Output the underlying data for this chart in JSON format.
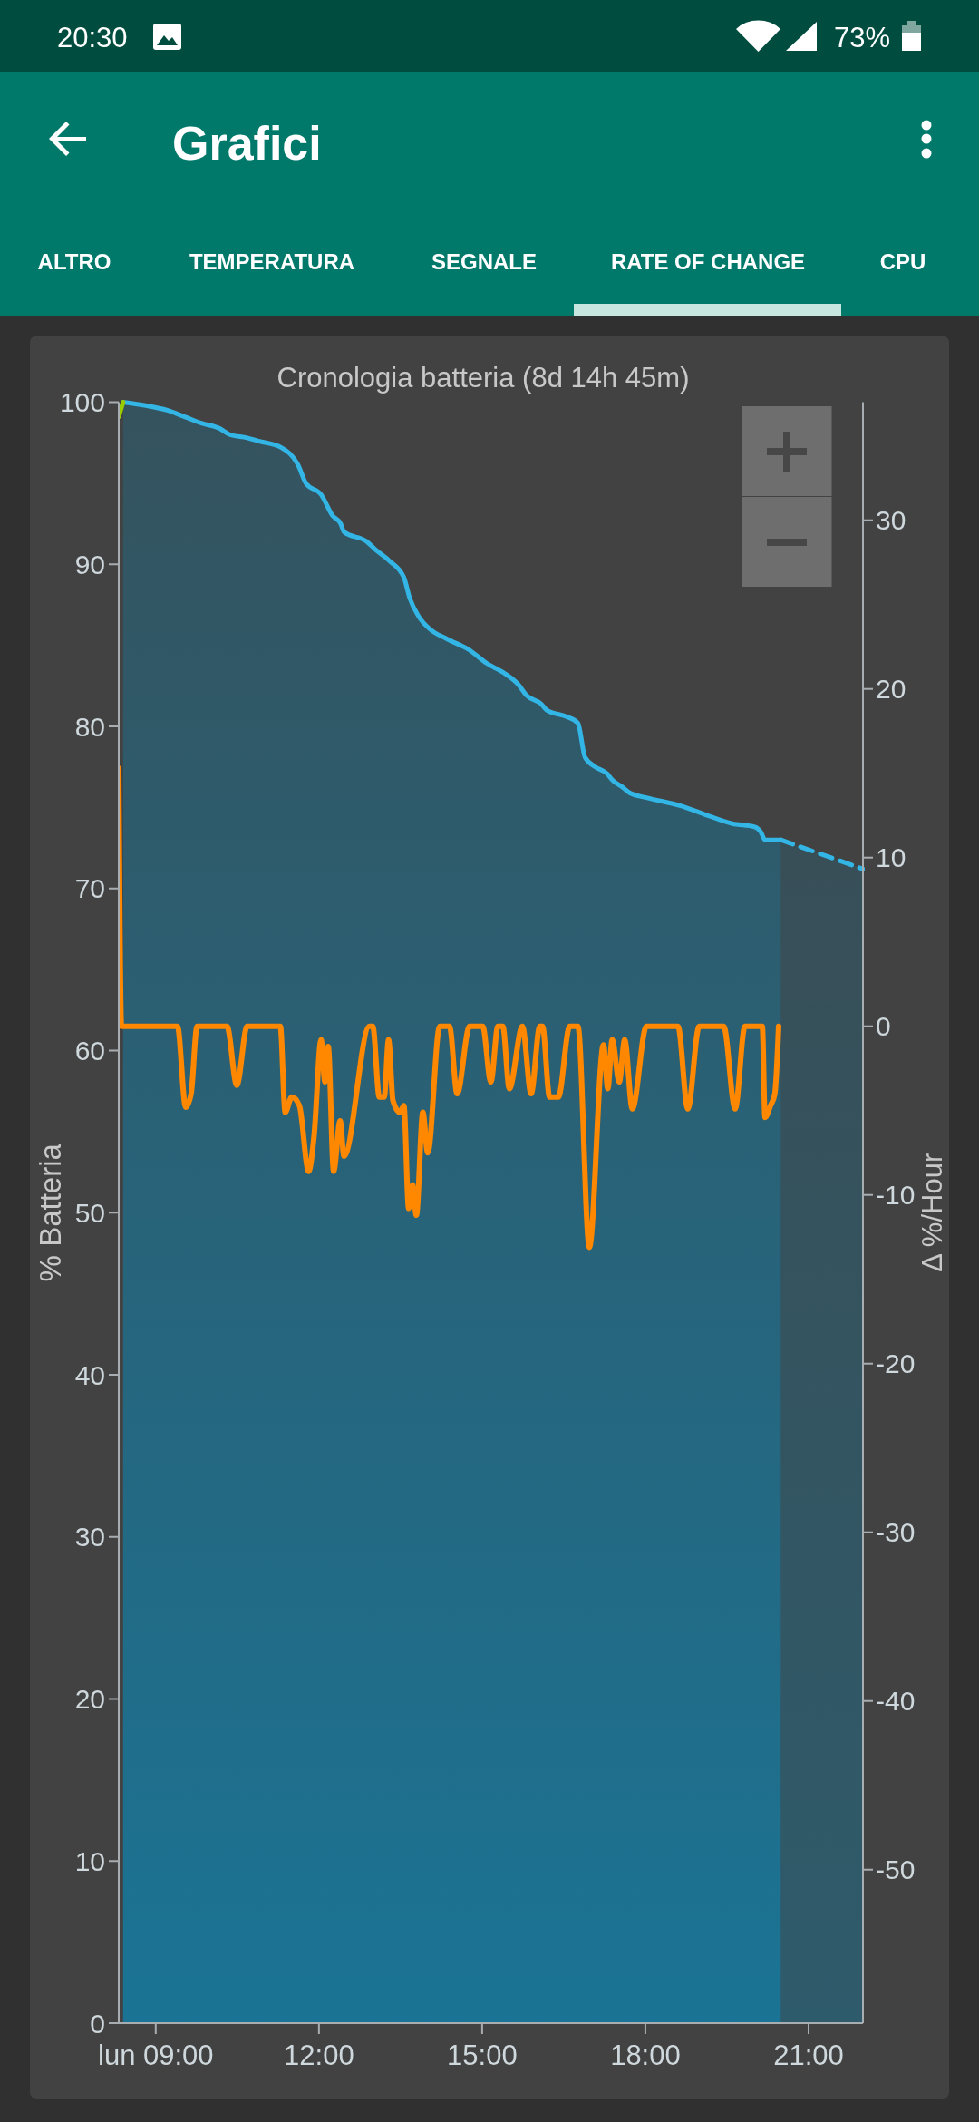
{
  "chart_data": {
    "type": "line",
    "title": "Cronologia batteria (8d 14h 45m)",
    "ylabel": "% Batteria",
    "y2label": "Δ %/Hour",
    "annotations": [
      "20:30",
      "73%",
      "Grafici",
      "ALTRO",
      "TEMPERATURA",
      "SEGNALE",
      "RATE OF CHANGE",
      "CPU"
    ],
    "xlim": [
      8.32,
      22
    ],
    "xticks": [
      {
        "value": 9,
        "label": "lun 09:00"
      },
      {
        "value": 12,
        "label": "12:00"
      },
      {
        "value": 15,
        "label": "15:00"
      },
      {
        "value": 18,
        "label": "18:00"
      },
      {
        "value": 21,
        "label": "21:00"
      }
    ],
    "ylim": [
      0,
      100
    ],
    "yticks": [
      0,
      10,
      20,
      30,
      40,
      50,
      60,
      70,
      80,
      90,
      100
    ],
    "y2lim": [
      -59.1,
      37.0
    ],
    "y2ticks": [
      -50,
      -40,
      -30,
      -20,
      -10,
      0,
      10,
      20,
      30
    ],
    "series": [
      {
        "type": "area",
        "color": "#33b5e5",
        "x": [
          8.4,
          8.79,
          9.21,
          9.53,
          9.84,
          10.16,
          10.36,
          10.68,
          10.89,
          11.31,
          11.62,
          11.76,
          12.04,
          12.25,
          12.4,
          12.46,
          12.88,
          13.04,
          13.3,
          13.56,
          13.67,
          13.83,
          14.04,
          14.35,
          14.77,
          15.08,
          15.4,
          15.66,
          15.82,
          16.08,
          16.19,
          16.55,
          16.76,
          16.89,
          17.08,
          17.29,
          17.39,
          17.6,
          17.71,
          18.02,
          18.65,
          19.07,
          19.6,
          20.01,
          20.12,
          20.2,
          20.49
        ],
        "values": [
          100,
          99.8,
          99.5,
          99.1,
          98.7,
          98.4,
          98.0,
          97.8,
          97.6,
          97.2,
          96.1,
          95.0,
          94.3,
          93.0,
          92.5,
          92.0,
          91.4,
          90.9,
          90.2,
          89.2,
          87.9,
          86.8,
          86.0,
          85.4,
          84.7,
          83.9,
          83.3,
          82.6,
          81.9,
          81.4,
          81.0,
          80.6,
          80.2,
          78.1,
          77.5,
          77.1,
          76.7,
          76.2,
          75.9,
          75.6,
          75.1,
          74.6,
          74.0,
          73.8,
          73.5,
          73.0,
          73.0
        ]
      },
      {
        "type": "area",
        "color": "#33b5e5",
        "line_style": "dashed",
        "x": [
          20.49,
          22
        ],
        "values": [
          73.0,
          71.2
        ]
      },
      {
        "color": "#99cc00",
        "x": [
          8.32,
          8.4
        ],
        "values": [
          99.1,
          100
        ]
      },
      {
        "color": "#ff8800",
        "axis": "y2",
        "x": [
          8.32,
          8.37,
          9.4,
          9.55,
          9.65,
          9.76,
          10.31,
          10.49,
          10.68,
          11.29,
          11.38,
          11.5,
          11.64,
          11.81,
          11.91,
          12.04,
          12.11,
          12.17,
          12.27,
          12.39,
          12.46,
          12.93,
          12.99,
          13.11,
          13.2,
          13.28,
          13.36,
          13.49,
          13.56,
          13.65,
          13.72,
          13.79,
          13.91,
          14.0,
          14.22,
          14.4,
          14.54,
          14.77,
          15.01,
          15.16,
          15.29,
          15.38,
          15.5,
          15.74,
          15.9,
          16.06,
          16.11,
          16.24,
          16.4,
          16.61,
          16.76,
          16.97,
          17.23,
          17.31,
          17.39,
          17.52,
          17.62,
          17.76,
          18.02,
          18.6,
          18.78,
          18.99,
          19.44,
          19.65,
          19.83,
          20.15,
          20.2,
          20.3,
          20.38,
          20.45
        ],
        "values": [
          15.3,
          0,
          0,
          -4.8,
          -4.0,
          0,
          0,
          -3.5,
          0,
          0,
          -5.1,
          -4.2,
          -4.7,
          -8.6,
          -6.5,
          -0.8,
          -3.3,
          -1.2,
          -8.6,
          -5.6,
          -7.7,
          0,
          0,
          -4.2,
          -4.2,
          -0.8,
          -4.4,
          -5.1,
          -4.7,
          -10.8,
          -9.4,
          -11.2,
          -5.1,
          -7.5,
          0,
          0,
          -4.0,
          0,
          0,
          -3.3,
          0,
          0,
          -3.7,
          0,
          -4.0,
          0,
          0,
          -4.2,
          -4.2,
          0,
          0,
          -13.1,
          -1.1,
          -3.7,
          -0.8,
          -3.3,
          -0.8,
          -4.9,
          0,
          0,
          -4.9,
          0,
          0,
          -4.9,
          0,
          0,
          -5.4,
          -4.7,
          -4.0,
          0
        ]
      }
    ]
  }
}
